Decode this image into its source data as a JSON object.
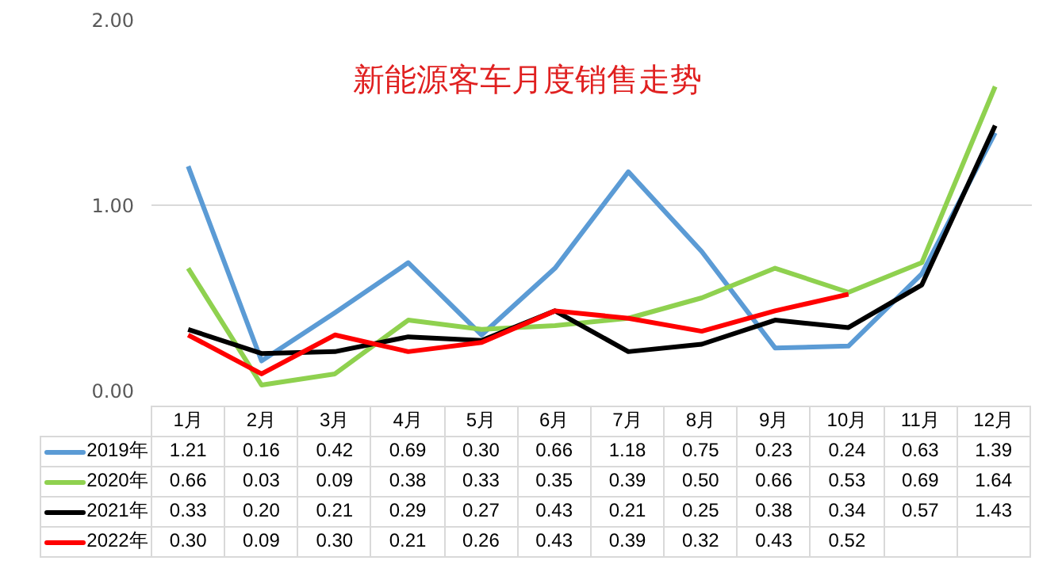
{
  "chart_data": {
    "type": "line",
    "title": "新能源客车月度销售走势",
    "categories": [
      "1月",
      "2月",
      "3月",
      "4月",
      "5月",
      "6月",
      "7月",
      "8月",
      "9月",
      "10月",
      "11月",
      "12月"
    ],
    "series": [
      {
        "name": "2019年",
        "color": "#5b9bd5",
        "values": [
          1.21,
          0.16,
          0.42,
          0.69,
          0.3,
          0.66,
          1.18,
          0.75,
          0.23,
          0.24,
          0.63,
          1.39
        ],
        "value_labels": [
          "1.21",
          "0.16",
          "0.42",
          "0.69",
          "0.30",
          "0.66",
          "1.18",
          "0.75",
          "0.23",
          "0.24",
          "0.63",
          "1.39"
        ]
      },
      {
        "name": "2020年",
        "color": "#8fd14f",
        "values": [
          0.66,
          0.03,
          0.09,
          0.38,
          0.33,
          0.35,
          0.39,
          0.5,
          0.66,
          0.53,
          0.69,
          1.64
        ],
        "value_labels": [
          "0.66",
          "0.03",
          "0.09",
          "0.38",
          "0.33",
          "0.35",
          "0.39",
          "0.50",
          "0.66",
          "0.53",
          "0.69",
          "1.64"
        ]
      },
      {
        "name": "2021年",
        "color": "#000000",
        "values": [
          0.33,
          0.2,
          0.21,
          0.29,
          0.27,
          0.43,
          0.21,
          0.25,
          0.38,
          0.34,
          0.57,
          1.43
        ],
        "value_labels": [
          "0.33",
          "0.20",
          "0.21",
          "0.29",
          "0.27",
          "0.43",
          "0.21",
          "0.25",
          "0.38",
          "0.34",
          "0.57",
          "1.43"
        ]
      },
      {
        "name": "2022年",
        "color": "#ff0000",
        "values": [
          0.3,
          0.09,
          0.3,
          0.21,
          0.26,
          0.43,
          0.39,
          0.32,
          0.43,
          0.52,
          null,
          null
        ],
        "value_labels": [
          "0.30",
          "0.09",
          "0.30",
          "0.21",
          "0.26",
          "0.43",
          "0.39",
          "0.32",
          "0.43",
          "0.52",
          null,
          null
        ]
      }
    ],
    "ylim": [
      0,
      2
    ],
    "yticks": [
      {
        "value": 0,
        "label": "0.00"
      },
      {
        "value": 1,
        "label": "1.00"
      },
      {
        "value": 2,
        "label": "2.00"
      }
    ],
    "grid": "y",
    "legend": "bottom",
    "marker": "none",
    "line_style": "solid"
  }
}
